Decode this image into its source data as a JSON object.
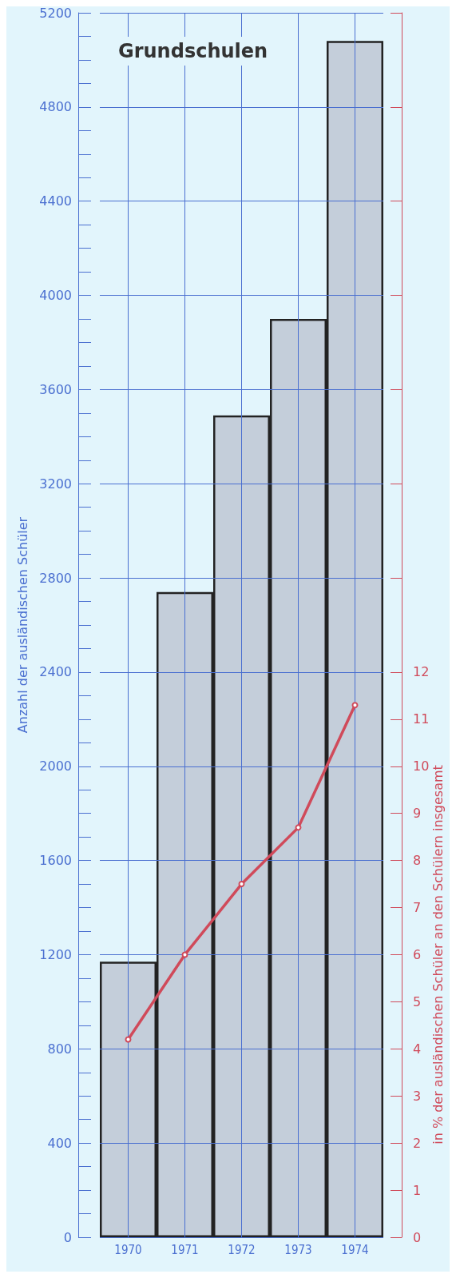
{
  "chart_data": {
    "type": "bar",
    "title": "Grundschulen",
    "ylabel": "Anzahl der ausländischen Schüler",
    "y2label": "in % der ausländischen Schüler an den Schülern insgesamt",
    "categories": [
      "1970",
      "1971",
      "1972",
      "1973",
      "1974"
    ],
    "series": [
      {
        "color": "#c4ceda",
        "values": [
          1170,
          2740,
          3490,
          3900,
          5080
        ]
      },
      {
        "type": "line",
        "axis": "y2",
        "color": "#d04a5a",
        "values": [
          4.2,
          6.0,
          7.5,
          8.7,
          11.3
        ]
      }
    ],
    "ylim": [
      0,
      5200
    ],
    "yticks": [
      0,
      {
        "value": 100,
        "label": null
      },
      {
        "value": 200,
        "label": null
      },
      {
        "value": 300,
        "label": null
      },
      400,
      {
        "value": 500,
        "label": null
      },
      {
        "value": 600,
        "label": null
      },
      {
        "value": 700,
        "label": null
      },
      800,
      {
        "value": 900,
        "label": null
      },
      {
        "value": 1000,
        "label": null
      },
      {
        "value": 1100,
        "label": null
      },
      1200,
      {
        "value": 1300,
        "label": null
      },
      {
        "value": 1400,
        "label": null
      },
      {
        "value": 1500,
        "label": null
      },
      1600,
      {
        "value": 1700,
        "label": null
      },
      {
        "value": 1800,
        "label": null
      },
      {
        "value": 1900,
        "label": null
      },
      2000,
      {
        "value": 2100,
        "label": null
      },
      {
        "value": 2200,
        "label": null
      },
      {
        "value": 2300,
        "label": null
      },
      2400,
      {
        "value": 2500,
        "label": null
      },
      {
        "value": 2600,
        "label": null
      },
      {
        "value": 2700,
        "label": null
      },
      2800,
      {
        "value": 2900,
        "label": null
      },
      {
        "value": 3000,
        "label": null
      },
      {
        "value": 3100,
        "label": null
      },
      3200,
      {
        "value": 3300,
        "label": null
      },
      {
        "value": 3400,
        "label": null
      },
      {
        "value": 3500,
        "label": null
      },
      3600,
      {
        "value": 3700,
        "label": null
      },
      {
        "value": 3800,
        "label": null
      },
      {
        "value": 3900,
        "label": null
      },
      4000,
      {
        "value": 4100,
        "label": null
      },
      {
        "value": 4200,
        "label": null
      },
      {
        "value": 4300,
        "label": null
      },
      4400,
      {
        "value": 4500,
        "label": null
      },
      {
        "value": 4600,
        "label": null
      },
      {
        "value": 4700,
        "label": null
      },
      4800,
      {
        "value": 4900,
        "label": null
      },
      {
        "value": 5000,
        "label": null
      },
      {
        "value": 5100,
        "label": null
      },
      5200
    ],
    "y2lim": [
      0,
      26
    ],
    "y2ticks": [
      0,
      1,
      2,
      3,
      4,
      5,
      6,
      7,
      8,
      9,
      10,
      11,
      12,
      {
        "value": 14,
        "label": null
      },
      {
        "value": 16,
        "label": null
      },
      {
        "value": 18,
        "label": null
      },
      {
        "value": 20,
        "label": null
      },
      {
        "value": 22,
        "label": null
      },
      {
        "value": 24,
        "label": null
      },
      {
        "value": 26,
        "label": null
      }
    ],
    "grid": true,
    "marker": "circle"
  }
}
